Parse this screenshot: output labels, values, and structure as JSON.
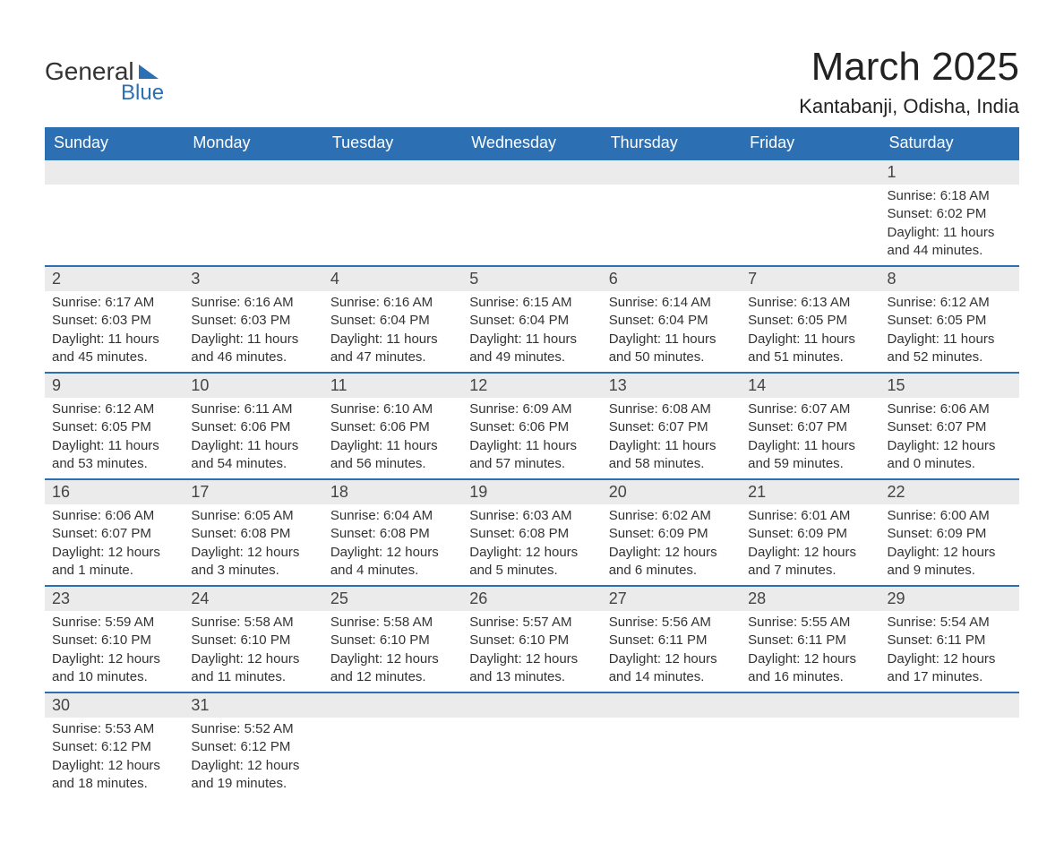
{
  "logo": {
    "text_general": "General",
    "text_blue": "Blue"
  },
  "header": {
    "month_title": "March 2025",
    "location": "Kantabanji, Odisha, India"
  },
  "colors": {
    "header_bg": "#2d6fb3",
    "header_text": "#ffffff",
    "daynum_bg": "#ebebeb",
    "text": "#333333",
    "border": "#2d6fb3"
  },
  "typography": {
    "title_fontsize": 44,
    "location_fontsize": 22,
    "dayheader_fontsize": 18,
    "daynum_fontsize": 18,
    "content_fontsize": 15
  },
  "calendar": {
    "day_headers": [
      "Sunday",
      "Monday",
      "Tuesday",
      "Wednesday",
      "Thursday",
      "Friday",
      "Saturday"
    ],
    "weeks": [
      [
        {
          "empty": true
        },
        {
          "empty": true
        },
        {
          "empty": true
        },
        {
          "empty": true
        },
        {
          "empty": true
        },
        {
          "empty": true
        },
        {
          "day": "1",
          "sunrise": "Sunrise: 6:18 AM",
          "sunset": "Sunset: 6:02 PM",
          "daylight1": "Daylight: 11 hours",
          "daylight2": "and 44 minutes."
        }
      ],
      [
        {
          "day": "2",
          "sunrise": "Sunrise: 6:17 AM",
          "sunset": "Sunset: 6:03 PM",
          "daylight1": "Daylight: 11 hours",
          "daylight2": "and 45 minutes."
        },
        {
          "day": "3",
          "sunrise": "Sunrise: 6:16 AM",
          "sunset": "Sunset: 6:03 PM",
          "daylight1": "Daylight: 11 hours",
          "daylight2": "and 46 minutes."
        },
        {
          "day": "4",
          "sunrise": "Sunrise: 6:16 AM",
          "sunset": "Sunset: 6:04 PM",
          "daylight1": "Daylight: 11 hours",
          "daylight2": "and 47 minutes."
        },
        {
          "day": "5",
          "sunrise": "Sunrise: 6:15 AM",
          "sunset": "Sunset: 6:04 PM",
          "daylight1": "Daylight: 11 hours",
          "daylight2": "and 49 minutes."
        },
        {
          "day": "6",
          "sunrise": "Sunrise: 6:14 AM",
          "sunset": "Sunset: 6:04 PM",
          "daylight1": "Daylight: 11 hours",
          "daylight2": "and 50 minutes."
        },
        {
          "day": "7",
          "sunrise": "Sunrise: 6:13 AM",
          "sunset": "Sunset: 6:05 PM",
          "daylight1": "Daylight: 11 hours",
          "daylight2": "and 51 minutes."
        },
        {
          "day": "8",
          "sunrise": "Sunrise: 6:12 AM",
          "sunset": "Sunset: 6:05 PM",
          "daylight1": "Daylight: 11 hours",
          "daylight2": "and 52 minutes."
        }
      ],
      [
        {
          "day": "9",
          "sunrise": "Sunrise: 6:12 AM",
          "sunset": "Sunset: 6:05 PM",
          "daylight1": "Daylight: 11 hours",
          "daylight2": "and 53 minutes."
        },
        {
          "day": "10",
          "sunrise": "Sunrise: 6:11 AM",
          "sunset": "Sunset: 6:06 PM",
          "daylight1": "Daylight: 11 hours",
          "daylight2": "and 54 minutes."
        },
        {
          "day": "11",
          "sunrise": "Sunrise: 6:10 AM",
          "sunset": "Sunset: 6:06 PM",
          "daylight1": "Daylight: 11 hours",
          "daylight2": "and 56 minutes."
        },
        {
          "day": "12",
          "sunrise": "Sunrise: 6:09 AM",
          "sunset": "Sunset: 6:06 PM",
          "daylight1": "Daylight: 11 hours",
          "daylight2": "and 57 minutes."
        },
        {
          "day": "13",
          "sunrise": "Sunrise: 6:08 AM",
          "sunset": "Sunset: 6:07 PM",
          "daylight1": "Daylight: 11 hours",
          "daylight2": "and 58 minutes."
        },
        {
          "day": "14",
          "sunrise": "Sunrise: 6:07 AM",
          "sunset": "Sunset: 6:07 PM",
          "daylight1": "Daylight: 11 hours",
          "daylight2": "and 59 minutes."
        },
        {
          "day": "15",
          "sunrise": "Sunrise: 6:06 AM",
          "sunset": "Sunset: 6:07 PM",
          "daylight1": "Daylight: 12 hours",
          "daylight2": "and 0 minutes."
        }
      ],
      [
        {
          "day": "16",
          "sunrise": "Sunrise: 6:06 AM",
          "sunset": "Sunset: 6:07 PM",
          "daylight1": "Daylight: 12 hours",
          "daylight2": "and 1 minute."
        },
        {
          "day": "17",
          "sunrise": "Sunrise: 6:05 AM",
          "sunset": "Sunset: 6:08 PM",
          "daylight1": "Daylight: 12 hours",
          "daylight2": "and 3 minutes."
        },
        {
          "day": "18",
          "sunrise": "Sunrise: 6:04 AM",
          "sunset": "Sunset: 6:08 PM",
          "daylight1": "Daylight: 12 hours",
          "daylight2": "and 4 minutes."
        },
        {
          "day": "19",
          "sunrise": "Sunrise: 6:03 AM",
          "sunset": "Sunset: 6:08 PM",
          "daylight1": "Daylight: 12 hours",
          "daylight2": "and 5 minutes."
        },
        {
          "day": "20",
          "sunrise": "Sunrise: 6:02 AM",
          "sunset": "Sunset: 6:09 PM",
          "daylight1": "Daylight: 12 hours",
          "daylight2": "and 6 minutes."
        },
        {
          "day": "21",
          "sunrise": "Sunrise: 6:01 AM",
          "sunset": "Sunset: 6:09 PM",
          "daylight1": "Daylight: 12 hours",
          "daylight2": "and 7 minutes."
        },
        {
          "day": "22",
          "sunrise": "Sunrise: 6:00 AM",
          "sunset": "Sunset: 6:09 PM",
          "daylight1": "Daylight: 12 hours",
          "daylight2": "and 9 minutes."
        }
      ],
      [
        {
          "day": "23",
          "sunrise": "Sunrise: 5:59 AM",
          "sunset": "Sunset: 6:10 PM",
          "daylight1": "Daylight: 12 hours",
          "daylight2": "and 10 minutes."
        },
        {
          "day": "24",
          "sunrise": "Sunrise: 5:58 AM",
          "sunset": "Sunset: 6:10 PM",
          "daylight1": "Daylight: 12 hours",
          "daylight2": "and 11 minutes."
        },
        {
          "day": "25",
          "sunrise": "Sunrise: 5:58 AM",
          "sunset": "Sunset: 6:10 PM",
          "daylight1": "Daylight: 12 hours",
          "daylight2": "and 12 minutes."
        },
        {
          "day": "26",
          "sunrise": "Sunrise: 5:57 AM",
          "sunset": "Sunset: 6:10 PM",
          "daylight1": "Daylight: 12 hours",
          "daylight2": "and 13 minutes."
        },
        {
          "day": "27",
          "sunrise": "Sunrise: 5:56 AM",
          "sunset": "Sunset: 6:11 PM",
          "daylight1": "Daylight: 12 hours",
          "daylight2": "and 14 minutes."
        },
        {
          "day": "28",
          "sunrise": "Sunrise: 5:55 AM",
          "sunset": "Sunset: 6:11 PM",
          "daylight1": "Daylight: 12 hours",
          "daylight2": "and 16 minutes."
        },
        {
          "day": "29",
          "sunrise": "Sunrise: 5:54 AM",
          "sunset": "Sunset: 6:11 PM",
          "daylight1": "Daylight: 12 hours",
          "daylight2": "and 17 minutes."
        }
      ],
      [
        {
          "day": "30",
          "sunrise": "Sunrise: 5:53 AM",
          "sunset": "Sunset: 6:12 PM",
          "daylight1": "Daylight: 12 hours",
          "daylight2": "and 18 minutes."
        },
        {
          "day": "31",
          "sunrise": "Sunrise: 5:52 AM",
          "sunset": "Sunset: 6:12 PM",
          "daylight1": "Daylight: 12 hours",
          "daylight2": "and 19 minutes."
        },
        {
          "empty": true
        },
        {
          "empty": true
        },
        {
          "empty": true
        },
        {
          "empty": true
        },
        {
          "empty": true
        }
      ]
    ]
  }
}
